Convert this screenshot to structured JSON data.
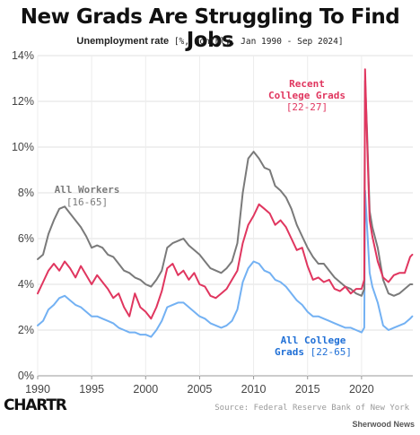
{
  "title": "New Grads Are Struggling To Find Jobs",
  "subtitle_main": "Unemployment rate",
  "subtitle_detail": " [%, monthly, Jan 1990 - Sep 2024]",
  "logo": "CHARTR",
  "source": "Source: Federal Reserve Bank of New York",
  "brand": "Sherwood News",
  "colors": {
    "all_workers": "#7a7a7a",
    "recent_grads": "#e0365f",
    "all_college": "#73b1f3"
  },
  "chart_data": {
    "type": "line",
    "title": "New Grads Are Struggling To Find Jobs",
    "xlim": [
      1990,
      2024.75
    ],
    "ylim": [
      0,
      14
    ],
    "x_ticks": [
      1990,
      1995,
      2000,
      2005,
      2010,
      2015,
      2020
    ],
    "y_ticks": [
      "0%",
      "2%",
      "4%",
      "6%",
      "8%",
      "10%",
      "12%",
      "14%"
    ],
    "y_tick_values": [
      0,
      2,
      4,
      6,
      8,
      10,
      12,
      14
    ],
    "grid": true,
    "series": [
      {
        "name": "All Workers",
        "label_line1": "All Workers",
        "label_line2": "[16-65]",
        "color": "#7a7a7a",
        "points": [
          [
            1990,
            5.1
          ],
          [
            1990.5,
            5.3
          ],
          [
            1991,
            6.2
          ],
          [
            1991.5,
            6.8
          ],
          [
            1992,
            7.3
          ],
          [
            1992.5,
            7.4
          ],
          [
            1993,
            7.1
          ],
          [
            1993.5,
            6.8
          ],
          [
            1994,
            6.5
          ],
          [
            1994.5,
            6.1
          ],
          [
            1995,
            5.6
          ],
          [
            1995.5,
            5.7
          ],
          [
            1996,
            5.6
          ],
          [
            1996.5,
            5.3
          ],
          [
            1997,
            5.2
          ],
          [
            1997.5,
            4.9
          ],
          [
            1998,
            4.6
          ],
          [
            1998.5,
            4.5
          ],
          [
            1999,
            4.3
          ],
          [
            1999.5,
            4.2
          ],
          [
            2000,
            4.0
          ],
          [
            2000.5,
            3.9
          ],
          [
            2001,
            4.2
          ],
          [
            2001.5,
            4.6
          ],
          [
            2002,
            5.6
          ],
          [
            2002.5,
            5.8
          ],
          [
            2003,
            5.9
          ],
          [
            2003.5,
            6.0
          ],
          [
            2004,
            5.7
          ],
          [
            2004.5,
            5.5
          ],
          [
            2005,
            5.3
          ],
          [
            2005.5,
            5.0
          ],
          [
            2006,
            4.7
          ],
          [
            2006.5,
            4.6
          ],
          [
            2007,
            4.5
          ],
          [
            2007.5,
            4.7
          ],
          [
            2008,
            5.0
          ],
          [
            2008.5,
            5.8
          ],
          [
            2009,
            8.0
          ],
          [
            2009.5,
            9.5
          ],
          [
            2010,
            9.8
          ],
          [
            2010.5,
            9.5
          ],
          [
            2011,
            9.1
          ],
          [
            2011.5,
            9.0
          ],
          [
            2012,
            8.3
          ],
          [
            2012.5,
            8.1
          ],
          [
            2013,
            7.8
          ],
          [
            2013.5,
            7.3
          ],
          [
            2014,
            6.6
          ],
          [
            2014.5,
            6.1
          ],
          [
            2015,
            5.6
          ],
          [
            2015.5,
            5.2
          ],
          [
            2016,
            4.9
          ],
          [
            2016.5,
            4.9
          ],
          [
            2017,
            4.6
          ],
          [
            2017.5,
            4.3
          ],
          [
            2018,
            4.1
          ],
          [
            2018.5,
            3.9
          ],
          [
            2019,
            3.8
          ],
          [
            2019.5,
            3.6
          ],
          [
            2020,
            3.5
          ],
          [
            2020.25,
            3.8
          ],
          [
            2020.33,
            12.9
          ],
          [
            2020.5,
            10.8
          ],
          [
            2020.75,
            7.2
          ],
          [
            2021,
            6.5
          ],
          [
            2021.5,
            5.6
          ],
          [
            2022,
            4.2
          ],
          [
            2022.5,
            3.6
          ],
          [
            2023,
            3.5
          ],
          [
            2023.5,
            3.6
          ],
          [
            2024,
            3.8
          ],
          [
            2024.5,
            4.0
          ],
          [
            2024.7,
            4.0
          ]
        ]
      },
      {
        "name": "Recent College Grads",
        "label_line1": "Recent",
        "label_line2": "College Grads",
        "label_line3": "[22-27]",
        "color": "#e0365f",
        "points": [
          [
            1990,
            3.6
          ],
          [
            1990.5,
            4.1
          ],
          [
            1991,
            4.6
          ],
          [
            1991.5,
            4.9
          ],
          [
            1992,
            4.6
          ],
          [
            1992.5,
            5.0
          ],
          [
            1993,
            4.7
          ],
          [
            1993.5,
            4.3
          ],
          [
            1994,
            4.8
          ],
          [
            1994.5,
            4.4
          ],
          [
            1995,
            4.0
          ],
          [
            1995.5,
            4.4
          ],
          [
            1996,
            4.1
          ],
          [
            1996.5,
            3.8
          ],
          [
            1997,
            3.4
          ],
          [
            1997.5,
            3.6
          ],
          [
            1998,
            3.0
          ],
          [
            1998.5,
            2.6
          ],
          [
            1999,
            3.6
          ],
          [
            1999.5,
            3.0
          ],
          [
            2000,
            2.8
          ],
          [
            2000.5,
            2.5
          ],
          [
            2001,
            3.0
          ],
          [
            2001.5,
            3.7
          ],
          [
            2002,
            4.7
          ],
          [
            2002.5,
            4.9
          ],
          [
            2003,
            4.4
          ],
          [
            2003.5,
            4.6
          ],
          [
            2004,
            4.2
          ],
          [
            2004.5,
            4.5
          ],
          [
            2005,
            4.0
          ],
          [
            2005.5,
            3.9
          ],
          [
            2006,
            3.5
          ],
          [
            2006.5,
            3.4
          ],
          [
            2007,
            3.6
          ],
          [
            2007.5,
            3.8
          ],
          [
            2008,
            4.2
          ],
          [
            2008.5,
            4.6
          ],
          [
            2009,
            5.8
          ],
          [
            2009.5,
            6.6
          ],
          [
            2010,
            7.0
          ],
          [
            2010.5,
            7.5
          ],
          [
            2011,
            7.3
          ],
          [
            2011.5,
            7.1
          ],
          [
            2012,
            6.6
          ],
          [
            2012.5,
            6.8
          ],
          [
            2013,
            6.5
          ],
          [
            2013.5,
            6.0
          ],
          [
            2014,
            5.5
          ],
          [
            2014.5,
            5.6
          ],
          [
            2015,
            4.8
          ],
          [
            2015.5,
            4.2
          ],
          [
            2016,
            4.3
          ],
          [
            2016.5,
            4.1
          ],
          [
            2017,
            4.2
          ],
          [
            2017.5,
            3.8
          ],
          [
            2018,
            3.7
          ],
          [
            2018.5,
            3.9
          ],
          [
            2019,
            3.6
          ],
          [
            2019.5,
            3.8
          ],
          [
            2020,
            3.8
          ],
          [
            2020.25,
            4.2
          ],
          [
            2020.33,
            13.4
          ],
          [
            2020.5,
            10.5
          ],
          [
            2020.75,
            6.8
          ],
          [
            2021,
            6.1
          ],
          [
            2021.5,
            5.0
          ],
          [
            2022,
            4.3
          ],
          [
            2022.5,
            4.1
          ],
          [
            2023,
            4.4
          ],
          [
            2023.5,
            4.5
          ],
          [
            2024,
            4.5
          ],
          [
            2024.5,
            5.2
          ],
          [
            2024.7,
            5.3
          ]
        ]
      },
      {
        "name": "All College Grads",
        "label_line1": "All College",
        "label_line2": "Grads",
        "label_line2_bracket": " [22-65]",
        "color": "#73b1f3",
        "points": [
          [
            1990,
            2.2
          ],
          [
            1990.5,
            2.4
          ],
          [
            1991,
            2.9
          ],
          [
            1991.5,
            3.1
          ],
          [
            1992,
            3.4
          ],
          [
            1992.5,
            3.5
          ],
          [
            1993,
            3.3
          ],
          [
            1993.5,
            3.1
          ],
          [
            1994,
            3.0
          ],
          [
            1994.5,
            2.8
          ],
          [
            1995,
            2.6
          ],
          [
            1995.5,
            2.6
          ],
          [
            1996,
            2.5
          ],
          [
            1996.5,
            2.4
          ],
          [
            1997,
            2.3
          ],
          [
            1997.5,
            2.1
          ],
          [
            1998,
            2.0
          ],
          [
            1998.5,
            1.9
          ],
          [
            1999,
            1.9
          ],
          [
            1999.5,
            1.8
          ],
          [
            2000,
            1.8
          ],
          [
            2000.5,
            1.7
          ],
          [
            2001,
            2.0
          ],
          [
            2001.5,
            2.4
          ],
          [
            2002,
            3.0
          ],
          [
            2002.5,
            3.1
          ],
          [
            2003,
            3.2
          ],
          [
            2003.5,
            3.2
          ],
          [
            2004,
            3.0
          ],
          [
            2004.5,
            2.8
          ],
          [
            2005,
            2.6
          ],
          [
            2005.5,
            2.5
          ],
          [
            2006,
            2.3
          ],
          [
            2006.5,
            2.2
          ],
          [
            2007,
            2.1
          ],
          [
            2007.5,
            2.2
          ],
          [
            2008,
            2.4
          ],
          [
            2008.5,
            2.9
          ],
          [
            2009,
            4.1
          ],
          [
            2009.5,
            4.7
          ],
          [
            2010,
            5.0
          ],
          [
            2010.5,
            4.9
          ],
          [
            2011,
            4.6
          ],
          [
            2011.5,
            4.5
          ],
          [
            2012,
            4.2
          ],
          [
            2012.5,
            4.1
          ],
          [
            2013,
            3.9
          ],
          [
            2013.5,
            3.6
          ],
          [
            2014,
            3.3
          ],
          [
            2014.5,
            3.1
          ],
          [
            2015,
            2.8
          ],
          [
            2015.5,
            2.6
          ],
          [
            2016,
            2.6
          ],
          [
            2016.5,
            2.5
          ],
          [
            2017,
            2.4
          ],
          [
            2017.5,
            2.3
          ],
          [
            2018,
            2.2
          ],
          [
            2018.5,
            2.1
          ],
          [
            2019,
            2.1
          ],
          [
            2019.5,
            2.0
          ],
          [
            2020,
            1.9
          ],
          [
            2020.25,
            2.1
          ],
          [
            2020.33,
            8.1
          ],
          [
            2020.5,
            6.6
          ],
          [
            2020.75,
            4.5
          ],
          [
            2021,
            3.9
          ],
          [
            2021.5,
            3.2
          ],
          [
            2022,
            2.2
          ],
          [
            2022.5,
            2.0
          ],
          [
            2023,
            2.1
          ],
          [
            2023.5,
            2.2
          ],
          [
            2024,
            2.3
          ],
          [
            2024.5,
            2.5
          ],
          [
            2024.7,
            2.6
          ]
        ]
      }
    ]
  }
}
